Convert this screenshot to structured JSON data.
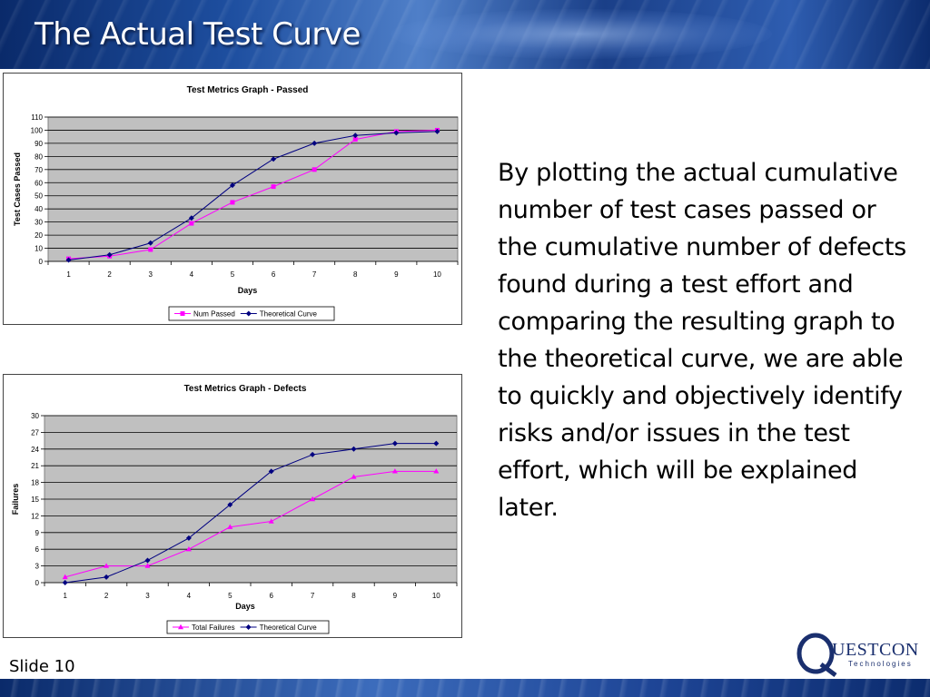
{
  "slide": {
    "title": "The Actual Test Curve",
    "slide_label": "Slide 10",
    "body_text": "By plotting the actual cumulative number of test cases passed or the cumulative number of defects found during a test effort and comparing the resulting graph to the theoretical curve, we are able to quickly and objectively identify risks and/or issues in the test effort, which will be explained later.",
    "logo": {
      "name": "QUESTCON",
      "tagline": "Technologies"
    }
  },
  "chart_data": [
    {
      "type": "line",
      "title": "Test Metrics Graph - Passed",
      "xlabel": "Days",
      "ylabel": "Test Cases Passed",
      "x": [
        1,
        2,
        3,
        4,
        5,
        6,
        7,
        8,
        9,
        10
      ],
      "ylim": [
        0,
        110
      ],
      "yticks": [
        0,
        10,
        20,
        30,
        40,
        50,
        60,
        70,
        80,
        90,
        100,
        110
      ],
      "grid": true,
      "legend": "bottom",
      "series": [
        {
          "name": "Num Passed",
          "color": "#ff00ff",
          "marker": "square",
          "values": [
            2,
            4,
            9,
            29,
            45,
            57,
            70,
            93,
            99,
            100
          ]
        },
        {
          "name": "Theoretical Curve",
          "color": "#000080",
          "marker": "diamond",
          "values": [
            1,
            5,
            14,
            33,
            58,
            78,
            90,
            96,
            98,
            99
          ]
        }
      ]
    },
    {
      "type": "line",
      "title": "Test Metrics Graph - Defects",
      "xlabel": "Days",
      "ylabel": "Failures",
      "x": [
        1,
        2,
        3,
        4,
        5,
        6,
        7,
        8,
        9,
        10
      ],
      "ylim": [
        0,
        30
      ],
      "yticks": [
        0,
        3,
        6,
        9,
        12,
        15,
        18,
        21,
        24,
        27,
        30
      ],
      "grid": true,
      "legend": "bottom",
      "series": [
        {
          "name": "Total Failures",
          "color": "#ff00ff",
          "marker": "triangle",
          "values": [
            1,
            3,
            3,
            6,
            10,
            11,
            15,
            19,
            20,
            20
          ]
        },
        {
          "name": "Theoretical Curve",
          "color": "#000080",
          "marker": "diamond",
          "values": [
            0,
            1,
            4,
            8,
            14,
            20,
            23,
            24,
            25,
            25
          ]
        }
      ]
    }
  ]
}
